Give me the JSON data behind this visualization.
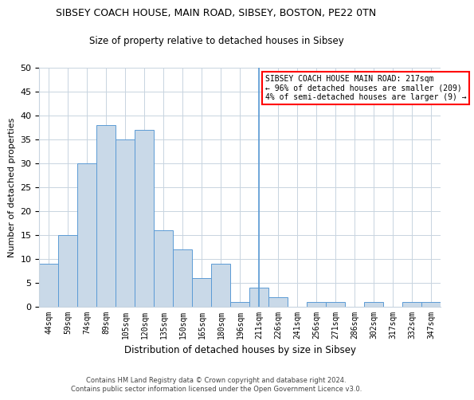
{
  "title1": "SIBSEY COACH HOUSE, MAIN ROAD, SIBSEY, BOSTON, PE22 0TN",
  "title2": "Size of property relative to detached houses in Sibsey",
  "xlabel": "Distribution of detached houses by size in Sibsey",
  "ylabel": "Number of detached properties",
  "bar_labels": [
    "44sqm",
    "59sqm",
    "74sqm",
    "89sqm",
    "105sqm",
    "120sqm",
    "135sqm",
    "150sqm",
    "165sqm",
    "180sqm",
    "196sqm",
    "211sqm",
    "226sqm",
    "241sqm",
    "256sqm",
    "271sqm",
    "286sqm",
    "302sqm",
    "317sqm",
    "332sqm",
    "347sqm"
  ],
  "bar_values": [
    9,
    15,
    30,
    38,
    35,
    37,
    16,
    12,
    6,
    9,
    1,
    4,
    2,
    0,
    1,
    1,
    0,
    1,
    0,
    1,
    1
  ],
  "bar_color_fill": "#c9d9e8",
  "bar_color_edge": "#5b9bd5",
  "marker_line_index": 11,
  "annotation_text": "SIBSEY COACH HOUSE MAIN ROAD: 217sqm\n← 96% of detached houses are smaller (209)\n4% of semi-detached houses are larger (9) →",
  "annotation_box_color": "white",
  "annotation_box_edge": "red",
  "ylim": [
    0,
    50
  ],
  "yticks": [
    0,
    5,
    10,
    15,
    20,
    25,
    30,
    35,
    40,
    45,
    50
  ],
  "footnote": "Contains HM Land Registry data © Crown copyright and database right 2024.\nContains public sector information licensed under the Open Government Licence v3.0.",
  "background_color": "white",
  "grid_color": "#c8d4e0"
}
